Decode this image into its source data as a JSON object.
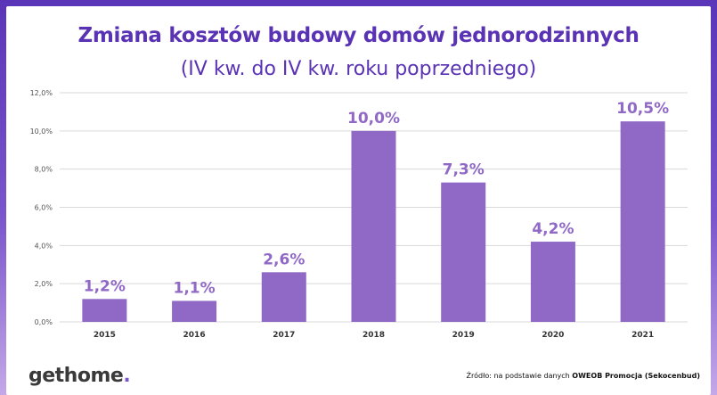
{
  "header": {
    "title": "Zmiana kosztów budowy domów jednorodzinnych",
    "subtitle": "(IV kw. do IV kw. roku poprzedniego)"
  },
  "colors": {
    "bar": "#9069c6",
    "data_label": "#9069c6",
    "title": "#5a32b4",
    "frame": "#6a44c2",
    "grid": "#d9d9d9"
  },
  "chart_data": {
    "type": "bar",
    "title": "Zmiana kosztów budowy domów jednorodzinnych",
    "subtitle": "(IV kw. do IV kw. roku poprzedniego)",
    "categories": [
      "2015",
      "2016",
      "2017",
      "2018",
      "2019",
      "2020",
      "2021"
    ],
    "values": [
      1.2,
      1.1,
      2.6,
      10.0,
      7.3,
      4.2,
      10.5
    ],
    "value_labels": [
      "1,2%",
      "1,1%",
      "2,6%",
      "10,0%",
      "7,3%",
      "4,2%",
      "10,5%"
    ],
    "y_ticks": [
      "0,0%",
      "2,0%",
      "4,0%",
      "6,0%",
      "8,0%",
      "10,0%",
      "12,0%"
    ],
    "y_tick_values": [
      0,
      2,
      4,
      6,
      8,
      10,
      12
    ],
    "ylim": [
      0,
      12
    ],
    "xlabel": "",
    "ylabel": "",
    "grid": true,
    "legend": "none"
  },
  "footer": {
    "logo_main": "gethome",
    "logo_dot": ".",
    "source_prefix": "Źródło: na podstawie danych",
    "source_bold": "OWEOB Promocja (Sekocenbud)"
  }
}
